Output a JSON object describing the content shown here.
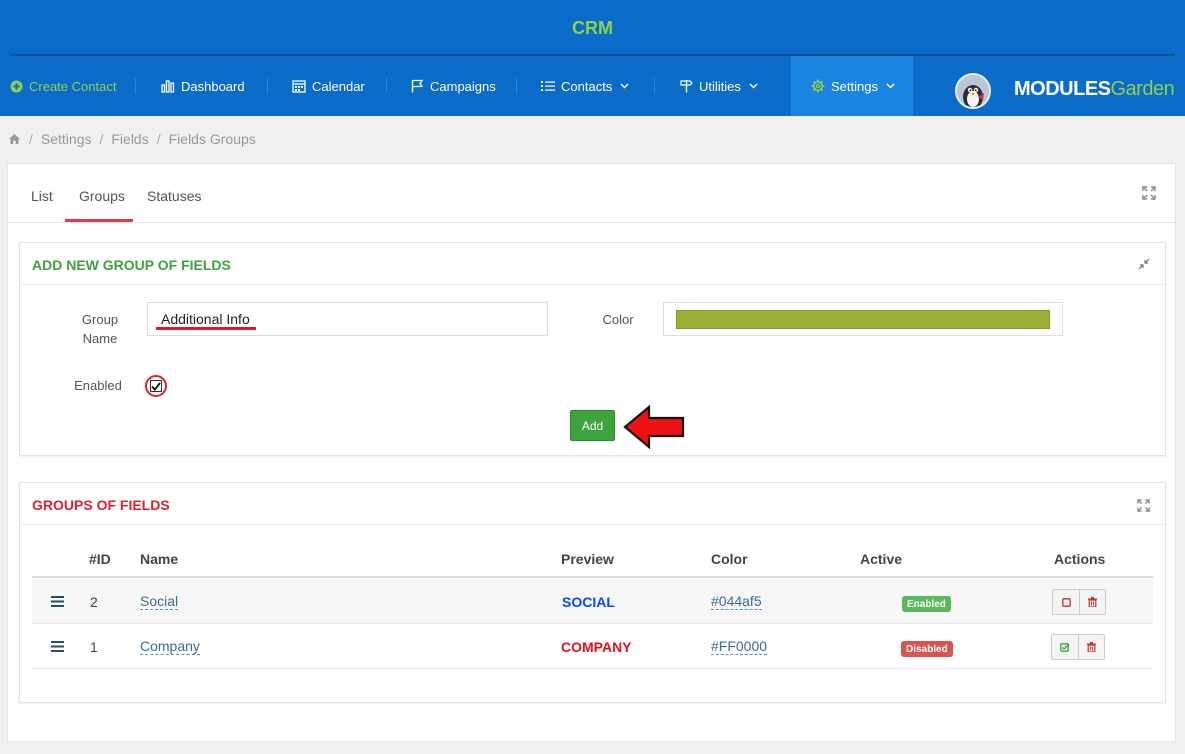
{
  "header": {
    "app_title": "CRM",
    "title_color": "#8ed14a",
    "bar_color": "#0a6cc8"
  },
  "nav": {
    "create_contact": "Create Contact",
    "dashboard": "Dashboard",
    "calendar": "Calendar",
    "campaigns": "Campaigns",
    "contacts": "Contacts",
    "utilities": "Utilities",
    "settings": "Settings",
    "logo_modules": "MODULES",
    "logo_garden": "Garden"
  },
  "breadcrumb": {
    "home_icon": "home-icon",
    "items": [
      "Settings",
      "Fields",
      "Fields Groups"
    ]
  },
  "tabs": [
    "List",
    "Groups",
    "Statuses"
  ],
  "active_tab": "Groups",
  "add_group": {
    "title": "ADD NEW GROUP OF FIELDS",
    "title_color": "#3da33d",
    "group_name_label_1": "Group",
    "group_name_label_2": "Name",
    "group_name_value": "Additional Info",
    "color_label": "Color",
    "color_value": "#9bb034",
    "enabled_label": "Enabled",
    "enabled_checked": true,
    "add_button": "Add"
  },
  "groups_table": {
    "title": "GROUPS OF FIELDS",
    "title_color": "#d9232f",
    "columns": [
      "#ID",
      "Name",
      "Preview",
      "Color",
      "Active",
      "Actions"
    ],
    "rows": [
      {
        "id": "2",
        "name": "Social",
        "preview": "SOCIAL",
        "color": "#044af5",
        "active": "Enabled",
        "active_color": "#5cb85c"
      },
      {
        "id": "1",
        "name": "Company",
        "preview": "COMPANY",
        "color": "#FF0000",
        "active": "Disabled",
        "active_color": "#d9534f"
      }
    ]
  }
}
